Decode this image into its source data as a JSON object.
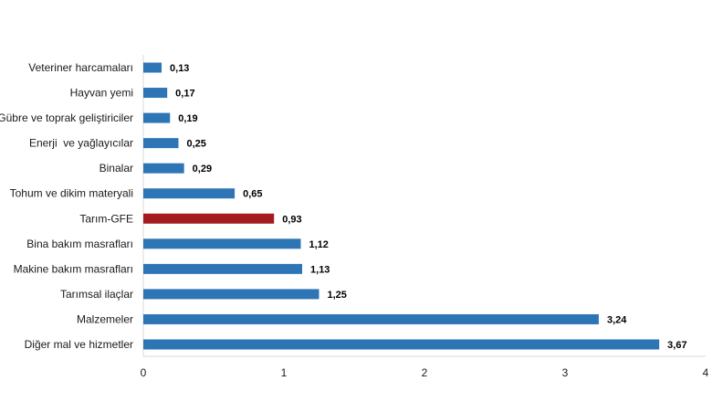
{
  "chart_data": {
    "type": "bar",
    "orientation": "horizontal",
    "categories": [
      "Veteriner harcamaları",
      "Hayvan yemi",
      "Gübre ve toprak geliştiriciler",
      "Enerji  ve yağlayıcılar",
      "Binalar",
      "Tohum ve dikim materyali",
      "Tarım-GFE",
      "Bina bakım masrafları",
      "Makine bakım masrafları",
      "Tarımsal ilaçlar",
      "Malzemeler",
      "Diğer mal ve hizmetler"
    ],
    "values": [
      0.13,
      0.17,
      0.19,
      0.25,
      0.29,
      0.65,
      0.93,
      1.12,
      1.13,
      1.25,
      3.24,
      3.67
    ],
    "value_labels": [
      "0,13",
      "0,17",
      "0,19",
      "0,25",
      "0,29",
      "0,65",
      "0,93",
      "1,12",
      "1,13",
      "1,25",
      "3,24",
      "3,67"
    ],
    "highlight_category": "Tarım-GFE",
    "xlim": [
      0,
      4
    ],
    "xticks": [
      "0",
      "1",
      "2",
      "3",
      "4"
    ],
    "grid": false,
    "colors": {
      "bar": "#2e75b6",
      "highlight": "#a31a1f"
    },
    "title": "",
    "xlabel": "",
    "ylabel": ""
  }
}
